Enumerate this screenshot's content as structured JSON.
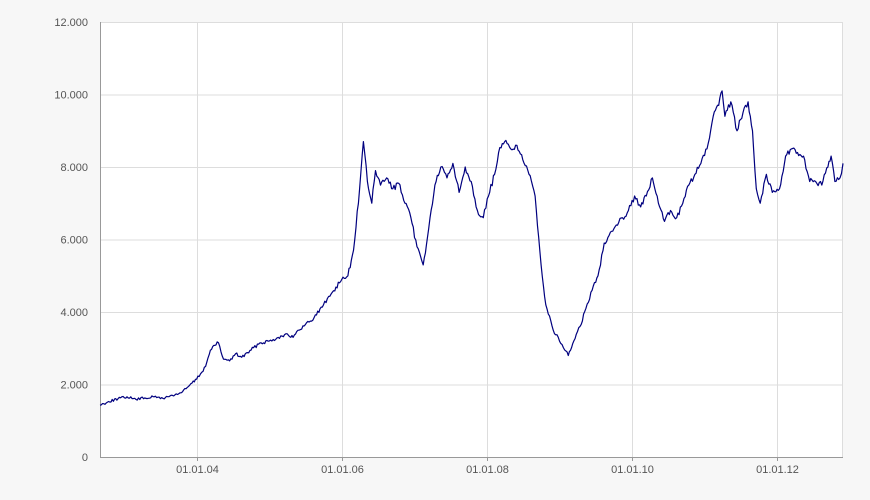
{
  "chart_data": {
    "type": "line",
    "title": "",
    "xlabel": "",
    "ylabel": "",
    "ylim": [
      0,
      12000
    ],
    "xlim": [
      "2002-09-01",
      "2012-11-30"
    ],
    "grid": true,
    "legend": "none",
    "y_ticks": [
      {
        "value": 0,
        "label": "0"
      },
      {
        "value": 2000,
        "label": "2.000"
      },
      {
        "value": 4000,
        "label": "4.000"
      },
      {
        "value": 6000,
        "label": "6.000"
      },
      {
        "value": 8000,
        "label": "8.000"
      },
      {
        "value": 10000,
        "label": "10.000"
      },
      {
        "value": 12000,
        "label": "12.000"
      }
    ],
    "x_ticks": [
      {
        "date": "2004-01-01",
        "label": "01.01.04"
      },
      {
        "date": "2006-01-01",
        "label": "01.01.06"
      },
      {
        "date": "2008-01-01",
        "label": "01.01.08"
      },
      {
        "date": "2010-01-01",
        "label": "01.01.10"
      },
      {
        "date": "2012-01-01",
        "label": "01.01.12"
      }
    ],
    "colors": {
      "line": "#00007f",
      "grid": "#dddddd",
      "axis": "#999999",
      "background": "#f7f7f7"
    },
    "series": [
      {
        "points": [
          [
            "2002-09-01",
            1430
          ],
          [
            "2002-10-15",
            1530
          ],
          [
            "2002-12-01",
            1610
          ],
          [
            "2003-01-15",
            1660
          ],
          [
            "2003-03-01",
            1590
          ],
          [
            "2003-04-15",
            1630
          ],
          [
            "2003-06-01",
            1660
          ],
          [
            "2003-07-15",
            1620
          ],
          [
            "2003-09-01",
            1700
          ],
          [
            "2003-10-15",
            1770
          ],
          [
            "2003-11-15",
            1920
          ],
          [
            "2004-01-01",
            2150
          ],
          [
            "2004-02-15",
            2500
          ],
          [
            "2004-03-10",
            2950
          ],
          [
            "2004-04-01",
            3080
          ],
          [
            "2004-04-20",
            3150
          ],
          [
            "2004-05-15",
            2700
          ],
          [
            "2004-06-15",
            2650
          ],
          [
            "2004-07-15",
            2850
          ],
          [
            "2004-08-15",
            2750
          ],
          [
            "2004-10-01",
            2950
          ],
          [
            "2004-11-15",
            3150
          ],
          [
            "2005-01-01",
            3200
          ],
          [
            "2005-02-15",
            3300
          ],
          [
            "2005-04-01",
            3400
          ],
          [
            "2005-05-01",
            3300
          ],
          [
            "2005-06-01",
            3500
          ],
          [
            "2005-07-01",
            3650
          ],
          [
            "2005-08-15",
            3850
          ],
          [
            "2005-10-01",
            4200
          ],
          [
            "2005-11-15",
            4550
          ],
          [
            "2006-01-01",
            4900
          ],
          [
            "2006-02-01",
            5000
          ],
          [
            "2006-03-01",
            5700
          ],
          [
            "2006-04-01",
            7400
          ],
          [
            "2006-04-20",
            8700
          ],
          [
            "2006-05-10",
            7600
          ],
          [
            "2006-06-01",
            7000
          ],
          [
            "2006-06-20",
            7900
          ],
          [
            "2006-07-15",
            7500
          ],
          [
            "2006-08-15",
            7700
          ],
          [
            "2006-09-15",
            7400
          ],
          [
            "2006-10-15",
            7550
          ],
          [
            "2006-11-15",
            7000
          ],
          [
            "2006-12-15",
            6600
          ],
          [
            "2007-01-15",
            5800
          ],
          [
            "2007-02-15",
            5300
          ],
          [
            "2007-03-15",
            6300
          ],
          [
            "2007-04-15",
            7500
          ],
          [
            "2007-05-15",
            8000
          ],
          [
            "2007-06-15",
            7700
          ],
          [
            "2007-07-15",
            8100
          ],
          [
            "2007-08-15",
            7300
          ],
          [
            "2007-09-15",
            8000
          ],
          [
            "2007-10-15",
            7600
          ],
          [
            "2007-11-15",
            6800
          ],
          [
            "2007-12-15",
            6600
          ],
          [
            "2008-01-10",
            7200
          ],
          [
            "2008-02-10",
            7800
          ],
          [
            "2008-03-01",
            8400
          ],
          [
            "2008-04-01",
            8700
          ],
          [
            "2008-05-01",
            8500
          ],
          [
            "2008-06-01",
            8600
          ],
          [
            "2008-07-01",
            8200
          ],
          [
            "2008-08-01",
            7800
          ],
          [
            "2008-09-01",
            7200
          ],
          [
            "2008-10-01",
            5300
          ],
          [
            "2008-10-25",
            4200
          ],
          [
            "2008-12-01",
            3500
          ],
          [
            "2009-01-15",
            3100
          ],
          [
            "2009-02-15",
            2800
          ],
          [
            "2009-03-15",
            3200
          ],
          [
            "2009-04-15",
            3600
          ],
          [
            "2009-05-15",
            4100
          ],
          [
            "2009-06-15",
            4600
          ],
          [
            "2009-07-15",
            5000
          ],
          [
            "2009-08-15",
            5900
          ],
          [
            "2009-09-15",
            6200
          ],
          [
            "2009-10-15",
            6400
          ],
          [
            "2009-11-15",
            6600
          ],
          [
            "2009-12-15",
            6800
          ],
          [
            "2010-01-15",
            7200
          ],
          [
            "2010-02-15",
            6900
          ],
          [
            "2010-03-15",
            7200
          ],
          [
            "2010-04-15",
            7700
          ],
          [
            "2010-05-15",
            7000
          ],
          [
            "2010-06-15",
            6500
          ],
          [
            "2010-07-15",
            6800
          ],
          [
            "2010-08-15",
            6600
          ],
          [
            "2010-09-15",
            7000
          ],
          [
            "2010-10-15",
            7500
          ],
          [
            "2010-11-15",
            7800
          ],
          [
            "2010-12-15",
            8100
          ],
          [
            "2011-01-15",
            8500
          ],
          [
            "2011-02-15",
            9400
          ],
          [
            "2011-03-15",
            9700
          ],
          [
            "2011-04-01",
            10100
          ],
          [
            "2011-04-15",
            9400
          ],
          [
            "2011-05-15",
            9800
          ],
          [
            "2011-06-15",
            9000
          ],
          [
            "2011-07-15",
            9500
          ],
          [
            "2011-08-10",
            9800
          ],
          [
            "2011-09-01",
            9000
          ],
          [
            "2011-09-20",
            7400
          ],
          [
            "2011-10-10",
            7000
          ],
          [
            "2011-11-10",
            7800
          ],
          [
            "2011-12-10",
            7300
          ],
          [
            "2012-01-15",
            7400
          ],
          [
            "2012-02-15",
            8300
          ],
          [
            "2012-03-15",
            8500
          ],
          [
            "2012-04-15",
            8400
          ],
          [
            "2012-05-15",
            8300
          ],
          [
            "2012-06-15",
            7600
          ],
          [
            "2012-07-15",
            7600
          ],
          [
            "2012-08-15",
            7500
          ],
          [
            "2012-09-15",
            8000
          ],
          [
            "2012-10-01",
            8300
          ],
          [
            "2012-10-20",
            7600
          ],
          [
            "2012-11-15",
            7700
          ],
          [
            "2012-11-30",
            8100
          ]
        ]
      }
    ]
  }
}
